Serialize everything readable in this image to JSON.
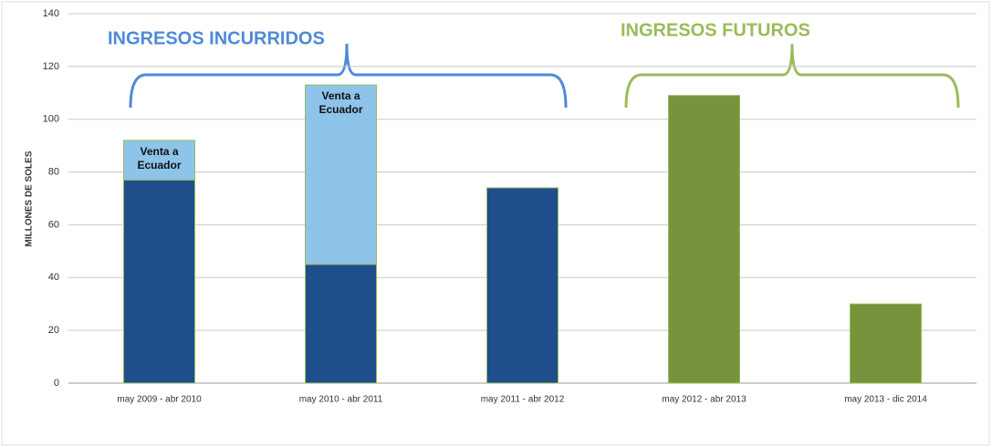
{
  "chart_data": {
    "type": "stacked_bar",
    "y_label": "MILLONES DE SOLES",
    "annotations": [
      "INGRESOS INCURRIDOS",
      "INGRESOS FUTUROS"
    ],
    "categories": [
      "may 2009 - abr 2010",
      "may 2010 - abr 2011",
      "may 2011 - abr 2012",
      "may 2012 - abr 2013",
      "may 2013 - dic 2014"
    ],
    "series": [
      {
        "color": "#1f4e8c",
        "values": [
          77,
          45,
          74,
          null,
          null
        ]
      },
      {
        "name": "Venta a Ecuador",
        "color": "#8ec3ea",
        "values": [
          15,
          68,
          null,
          null,
          null
        ]
      },
      {
        "color": "#77933c",
        "values": [
          null,
          null,
          null,
          109,
          30
        ]
      }
    ],
    "ylim": [
      0,
      140
    ],
    "yticks": [
      0,
      20,
      40,
      60,
      80,
      100,
      120,
      140
    ],
    "grid": true
  }
}
